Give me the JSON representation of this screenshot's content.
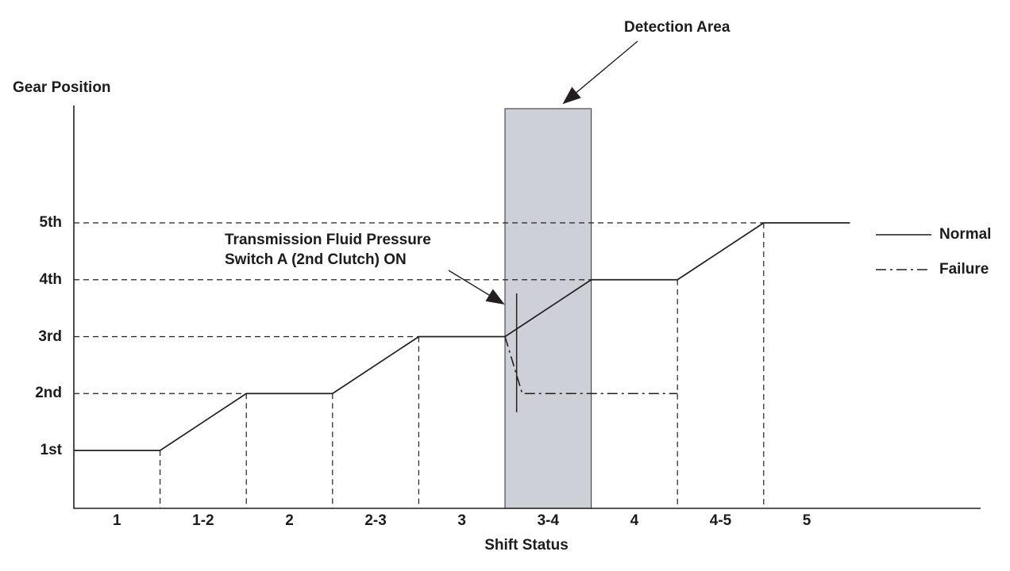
{
  "annotations": {
    "detection_area_label": "Detection Area",
    "switch_label_line1": "Transmission Fluid Pressure",
    "switch_label_line2": "Switch A (2nd Clutch) ON"
  },
  "chart_data": {
    "type": "line",
    "title": "",
    "xlabel": "Shift Status",
    "ylabel": "Gear Position",
    "x_categories": [
      "1",
      "1-2",
      "2",
      "2-3",
      "3",
      "3-4",
      "4",
      "4-5",
      "5"
    ],
    "y_categories": [
      "1st",
      "2nd",
      "3rd",
      "4th",
      "5th"
    ],
    "series": [
      {
        "name": "Normal",
        "style": "solid",
        "points": [
          [
            0,
            1
          ],
          [
            1,
            1
          ],
          [
            2,
            2
          ],
          [
            3,
            2
          ],
          [
            4,
            3
          ],
          [
            5,
            3
          ],
          [
            6,
            4
          ],
          [
            7,
            4
          ],
          [
            8,
            5
          ],
          [
            9,
            5
          ]
        ]
      },
      {
        "name": "Failure",
        "style": "dash-dot",
        "points": [
          [
            5,
            3
          ],
          [
            5.2,
            2
          ],
          [
            7,
            2
          ]
        ]
      }
    ],
    "detection_area": {
      "label": "Detection Area",
      "region": "3-4",
      "x_from_boundary": 5,
      "x_to_boundary": 6,
      "fill": "#cdd0d7",
      "border": "#4a4b4f"
    },
    "switch_marker": {
      "shift_unit": 5.135,
      "gear_top": 3.76,
      "gear_bottom": 1.67
    },
    "legend": [
      {
        "label": "Normal",
        "style": "solid"
      },
      {
        "label": "Failure",
        "style": "dash-dot"
      }
    ],
    "legend_position": "right",
    "grid": "dashed-step-guides",
    "line_color": "#231f20"
  }
}
